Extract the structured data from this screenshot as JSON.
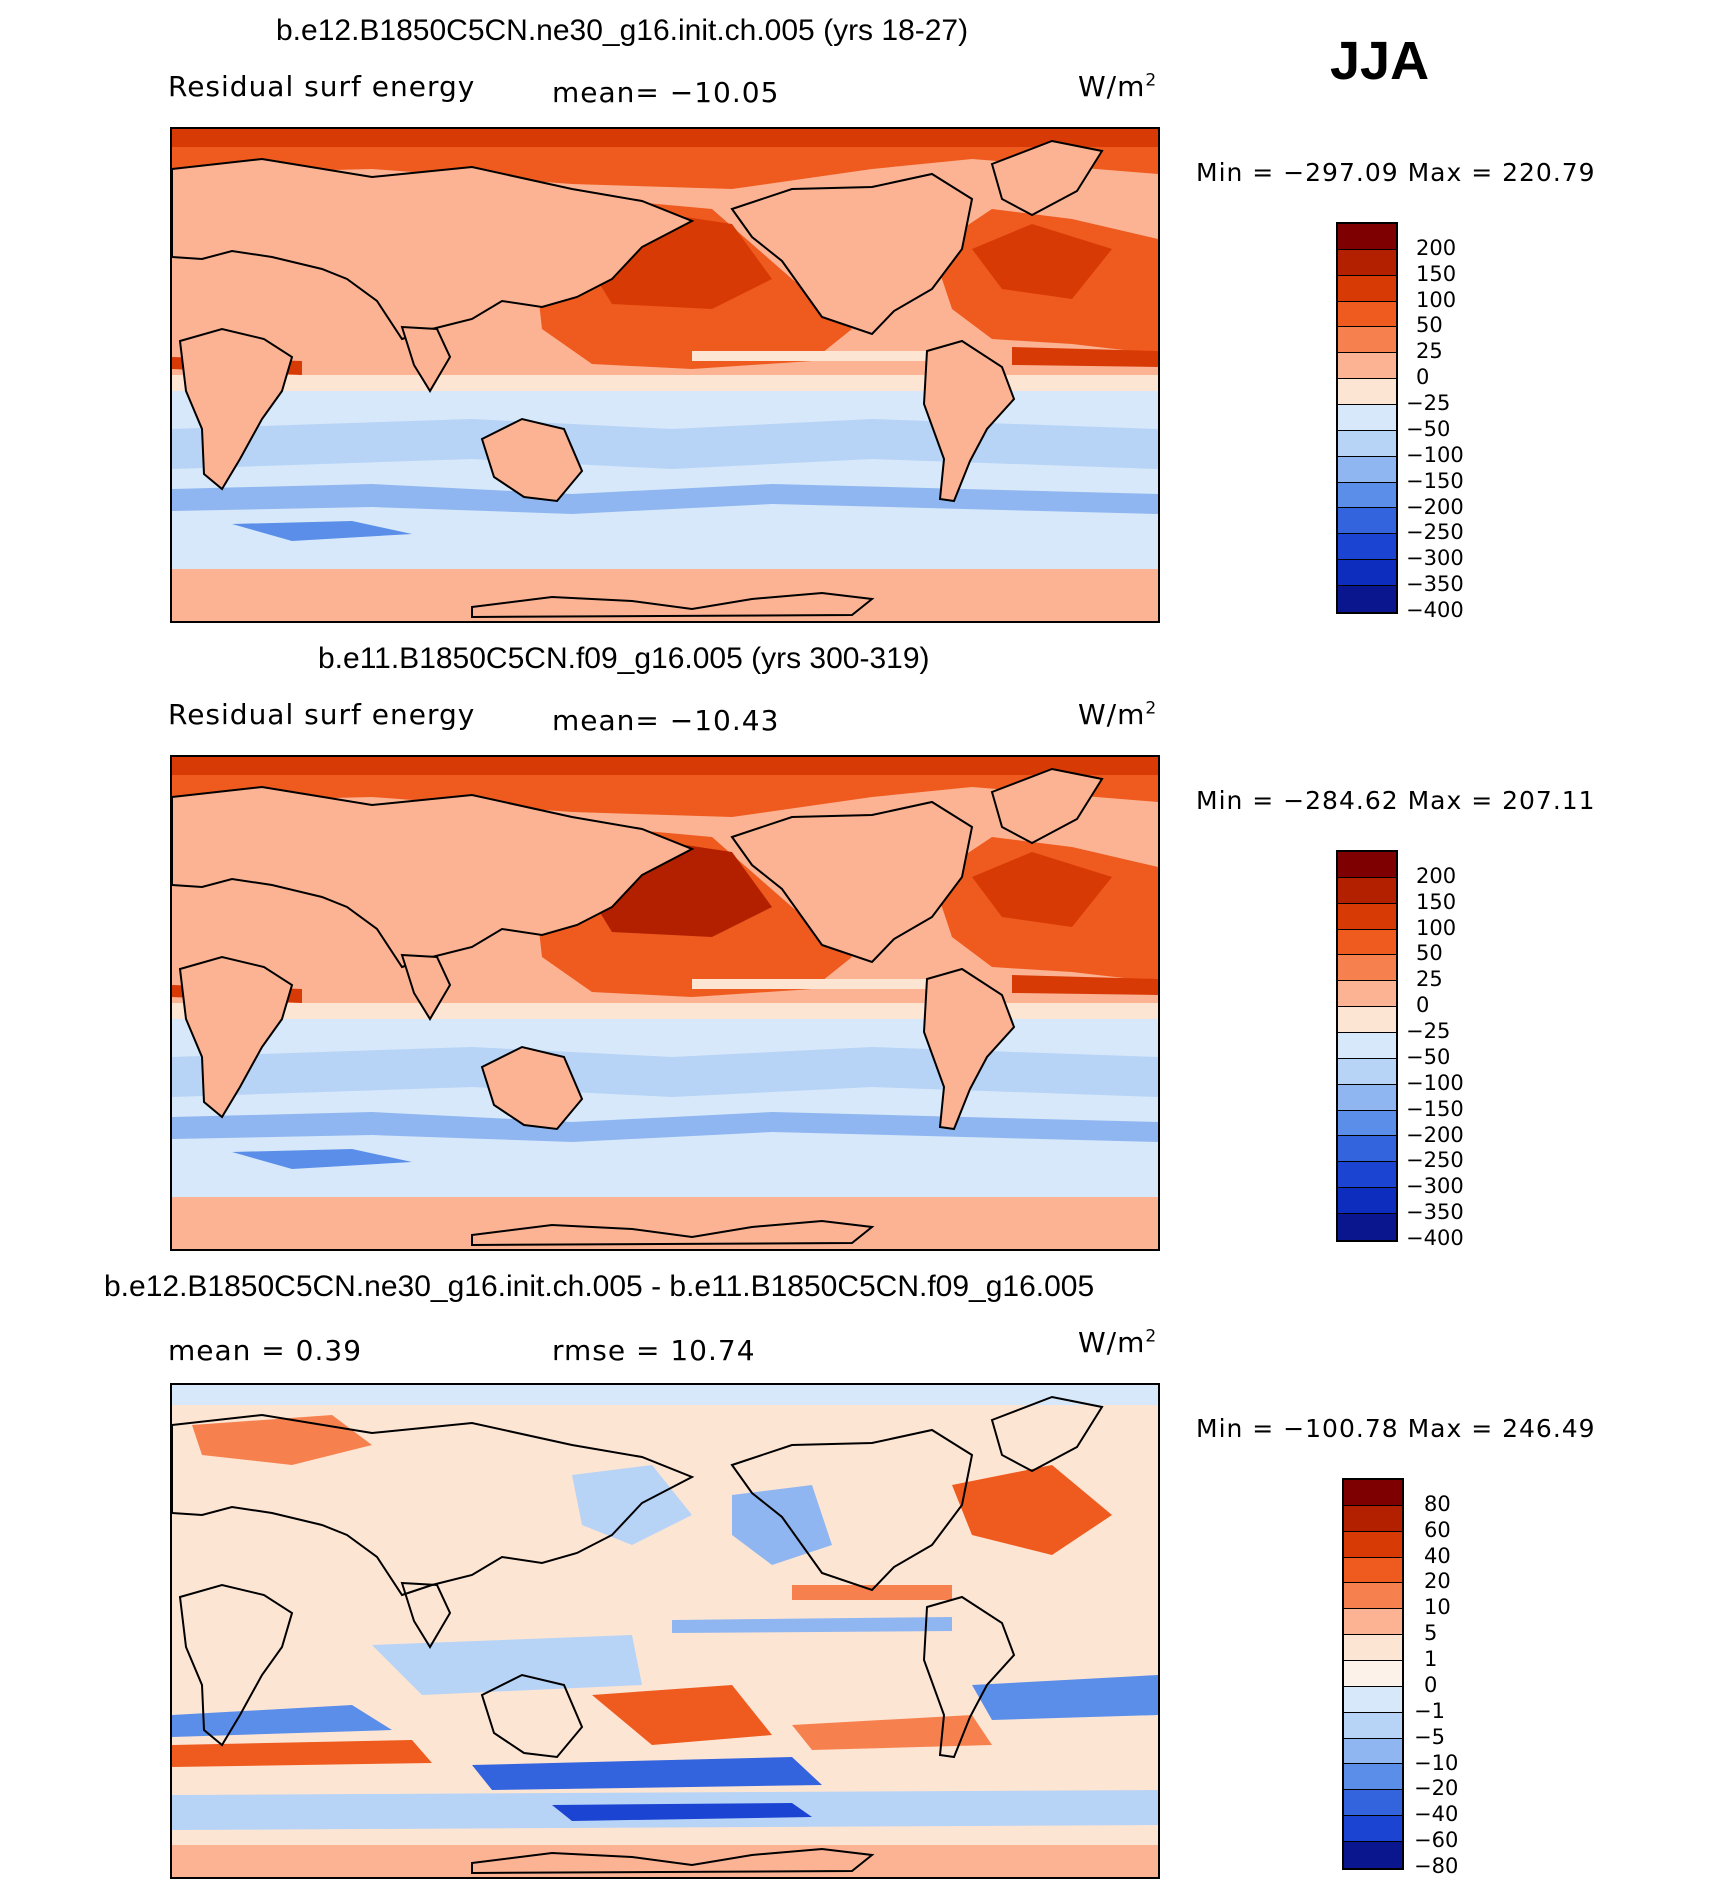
{
  "season": "JJA",
  "unit_label": "W/m",
  "unit_sup": "2",
  "panels": [
    {
      "title": "b.e12.B1850C5CN.ne30_g16.init.ch.005 (yrs 18-27)",
      "left_label": "Residual surf energy",
      "mid_label": "mean= −10.05",
      "minmax": "Min  =  −297.09  Max  =  220.79",
      "variant": "a"
    },
    {
      "title": "b.e11.B1850C5CN.f09_g16.005 (yrs 300-319)",
      "left_label": "Residual surf energy",
      "mid_label": "mean= −10.43",
      "minmax": "Min  =  −284.62  Max  =  207.11",
      "variant": "b"
    },
    {
      "title": "b.e12.B1850C5CN.ne30_g16.init.ch.005 - b.e11.B1850C5CN.f09_g16.005",
      "left_label": "mean =     0.39",
      "mid_label": "rmse =    10.74",
      "minmax": "Min  =  −100.78  Max  =  246.49",
      "variant": "diff"
    }
  ],
  "colorbars": {
    "abs": {
      "labels": [
        "200",
        "150",
        "100",
        "50",
        "25",
        "0",
        "−25",
        "−50",
        "−100",
        "−150",
        "−200",
        "−250",
        "−300",
        "−350",
        "−400"
      ],
      "colors": [
        "#7f0000",
        "#b22000",
        "#d83a05",
        "#ef5a1e",
        "#f7814e",
        "#fbb394",
        "#fde5d4",
        "#d6e8fa",
        "#b7d3f6",
        "#8fb6f0",
        "#5a8ee8",
        "#3363dd",
        "#1b44d2",
        "#0c2dbd",
        "#0a168e"
      ]
    },
    "diff": {
      "labels": [
        "80",
        "60",
        "40",
        "20",
        "10",
        "5",
        "1",
        "0",
        "−1",
        "−5",
        "−10",
        "−20",
        "−40",
        "−60",
        "−80"
      ],
      "colors": [
        "#7f0000",
        "#b22000",
        "#d83a05",
        "#ef5a1e",
        "#f7814e",
        "#fbb394",
        "#fde5d4",
        "#fdf2ea",
        "#d6e8fa",
        "#b7d3f6",
        "#8fb6f0",
        "#5a8ee8",
        "#3363dd",
        "#1b44d2",
        "#0a168e"
      ]
    }
  }
}
